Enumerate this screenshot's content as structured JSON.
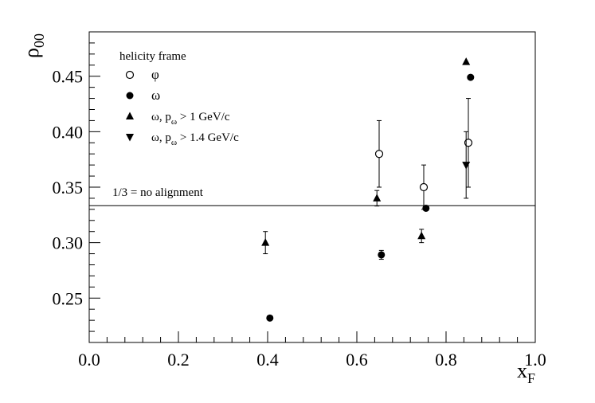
{
  "chart_data": {
    "type": "scatter",
    "xlabel_main": "x",
    "xlabel_sub": "F",
    "ylabel_main": "ρ",
    "ylabel_sub": "00",
    "xlim": [
      0.0,
      1.0
    ],
    "ylim": [
      0.21,
      0.49
    ],
    "xticks": [
      "0.0",
      "0.2",
      "0.4",
      "0.6",
      "0.8",
      "1.0"
    ],
    "xtick_values": [
      0.0,
      0.2,
      0.4,
      0.6,
      0.8,
      1.0
    ],
    "yticks": [
      "0.25",
      "0.30",
      "0.35",
      "0.40",
      "0.45"
    ],
    "ytick_values": [
      0.25,
      0.3,
      0.35,
      0.4,
      0.45
    ],
    "grid": false,
    "legend_title": "helicity frame",
    "legend": [
      {
        "marker": "open-circle",
        "text": "φ"
      },
      {
        "marker": "filled-circle",
        "text": "ω"
      },
      {
        "marker": "triangle-up",
        "text_main": "ω, p",
        "text_sub": "ω",
        "text_rest": " > 1 GeV/c"
      },
      {
        "marker": "triangle-down",
        "text_main": "ω, p",
        "text_sub": "ω",
        "text_rest": " > 1.4 GeV/c"
      }
    ],
    "reference_line": {
      "y": 0.3333,
      "label": "1/3 = no alignment"
    },
    "series": [
      {
        "name": "φ",
        "marker": "open-circle",
        "points": [
          {
            "x": 0.65,
            "y": 0.38,
            "err": 0.03
          },
          {
            "x": 0.75,
            "y": 0.35,
            "err": 0.02
          },
          {
            "x": 0.85,
            "y": 0.39,
            "err": 0.04
          }
        ]
      },
      {
        "name": "ω",
        "marker": "filled-circle",
        "points": [
          {
            "x": 0.405,
            "y": 0.232,
            "err": 0.0
          },
          {
            "x": 0.655,
            "y": 0.289,
            "err": 0.004
          },
          {
            "x": 0.755,
            "y": 0.331,
            "err": 0.0
          },
          {
            "x": 0.855,
            "y": 0.449,
            "err": 0.0
          }
        ]
      },
      {
        "name": "ω, pω > 1 GeV/c",
        "marker": "triangle-up",
        "points": [
          {
            "x": 0.395,
            "y": 0.3,
            "err": 0.01
          },
          {
            "x": 0.645,
            "y": 0.34,
            "err": 0.007
          },
          {
            "x": 0.745,
            "y": 0.306,
            "err": 0.006
          },
          {
            "x": 0.845,
            "y": 0.463,
            "err": 0.0
          }
        ]
      },
      {
        "name": "ω, pω > 1.4 GeV/c",
        "marker": "triangle-down",
        "points": [
          {
            "x": 0.845,
            "y": 0.37,
            "err": 0.03
          }
        ]
      }
    ]
  }
}
